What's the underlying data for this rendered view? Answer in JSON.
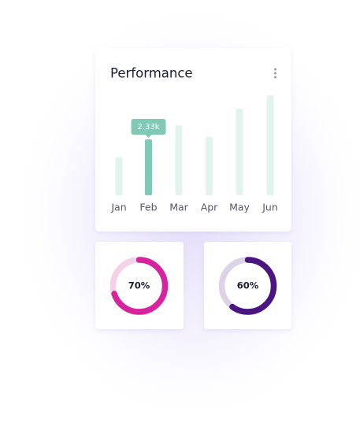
{
  "chart_data": [
    {
      "type": "bar",
      "title": "Performance",
      "categories": [
        "Jan",
        "Feb",
        "Mar",
        "Apr",
        "May",
        "Jun"
      ],
      "values": [
        1575,
        2330,
        2920,
        2430,
        3610,
        4170
      ],
      "value_labels": [
        null,
        "2.33k",
        null,
        null,
        null,
        null
      ],
      "color": "#e3f3ed",
      "highlight_color": "#80c9b4",
      "highlight": 1
    },
    {
      "type": "donut",
      "values": [
        70
      ],
      "value_labels": [
        "70%"
      ],
      "color": "#d6249f",
      "track_color": "#f5d0e9"
    },
    {
      "type": "donut",
      "values": [
        60
      ],
      "value_labels": [
        "60%"
      ],
      "color": "#4a1580",
      "track_color": "#ddd2e6"
    }
  ]
}
